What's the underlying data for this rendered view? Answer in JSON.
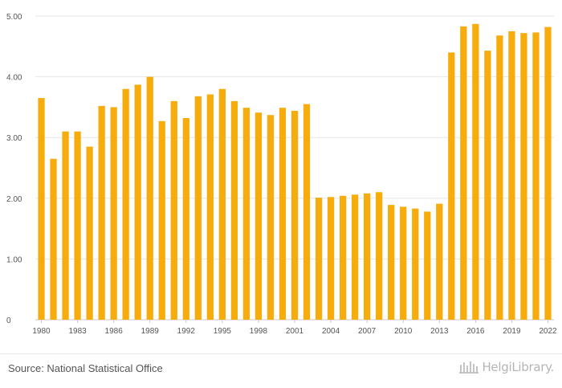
{
  "chart_data": {
    "type": "bar",
    "title": "",
    "xlabel": "",
    "ylabel": "",
    "ylim": [
      0,
      5
    ],
    "grid": true,
    "bar_color": "#f5ac0c",
    "y_ticks": [
      "0",
      "1.00",
      "2.00",
      "3.00",
      "4.00",
      "5.00"
    ],
    "x_ticks": [
      "1980",
      "1983",
      "1986",
      "1989",
      "1992",
      "1995",
      "1998",
      "2001",
      "2004",
      "2007",
      "2010",
      "2013",
      "2016",
      "2019",
      "2022"
    ],
    "categories": [
      "1980",
      "1981",
      "1982",
      "1983",
      "1984",
      "1985",
      "1986",
      "1987",
      "1988",
      "1989",
      "1990",
      "1991",
      "1992",
      "1993",
      "1994",
      "1995",
      "1996",
      "1997",
      "1998",
      "1999",
      "2000",
      "2001",
      "2002",
      "2003",
      "2004",
      "2005",
      "2006",
      "2007",
      "2008",
      "2009",
      "2010",
      "2011",
      "2012",
      "2013",
      "2014",
      "2015",
      "2016",
      "2017",
      "2018",
      "2019",
      "2020",
      "2021",
      "2022"
    ],
    "values": [
      3.65,
      2.65,
      3.1,
      3.1,
      2.85,
      3.52,
      3.5,
      3.8,
      3.87,
      4.0,
      3.27,
      3.6,
      3.32,
      3.68,
      3.71,
      3.8,
      3.6,
      3.49,
      3.41,
      3.37,
      3.49,
      3.44,
      3.55,
      2.01,
      2.02,
      2.04,
      2.06,
      2.08,
      2.1,
      1.89,
      1.86,
      1.83,
      1.78,
      1.91,
      4.4,
      4.83,
      4.87,
      4.43,
      4.68,
      4.75,
      4.72,
      4.73,
      4.82
    ]
  },
  "footer": {
    "source": "Source: National Statistical Office",
    "brand": "HelgiLibrary."
  }
}
